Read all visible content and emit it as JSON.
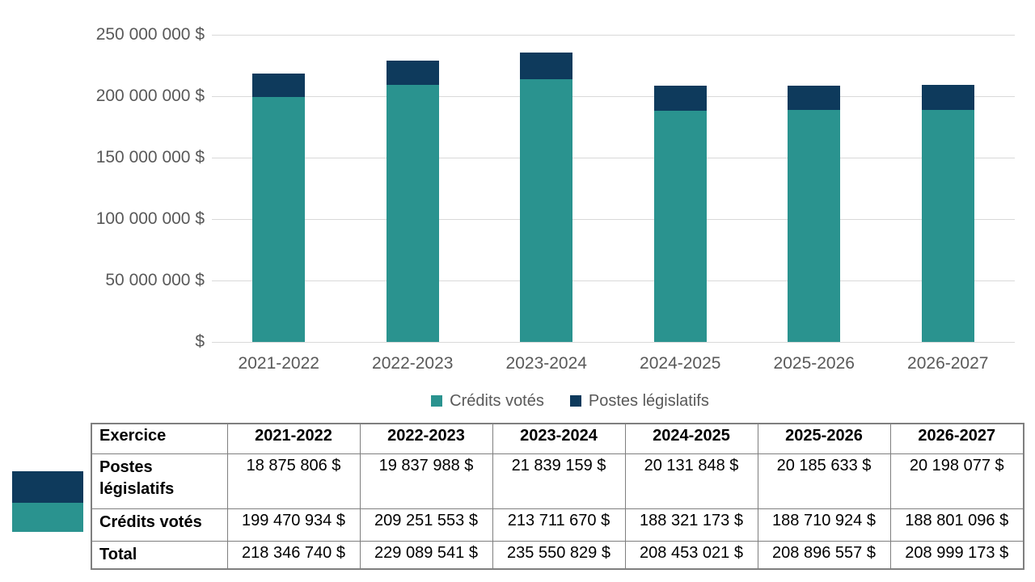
{
  "colors": {
    "teal": "#2A938F",
    "navy": "#0E3A5C",
    "gridline": "#D9D9D9",
    "axis_text": "#595959",
    "table_border": "#7F7F7F"
  },
  "chart_data": {
    "type": "bar",
    "stacked": true,
    "title": "",
    "xlabel": "",
    "ylabel": "",
    "categories": [
      "2021-2022",
      "2022-2023",
      "2023-2024",
      "2024-2025",
      "2025-2026",
      "2026-2027"
    ],
    "series": [
      {
        "name": "Crédits votés",
        "color": "#2A938F",
        "values": [
          199470934,
          209251553,
          213711670,
          188321173,
          188710924,
          188801096
        ]
      },
      {
        "name": "Postes législatifs",
        "color": "#0E3A5C",
        "values": [
          18875806,
          19837988,
          21839159,
          20131848,
          20185633,
          20198077
        ]
      }
    ],
    "totals": [
      218346740,
      229089541,
      235550829,
      208453021,
      208896557,
      208999173
    ],
    "ylim": [
      0,
      250000000
    ],
    "y_tick_step": 50000000,
    "y_tick_labels_top_down": [
      "250 000 000 $",
      "200 000 000 $",
      "150 000 000 $",
      "100 000 000 $",
      "50 000 000 $",
      "$"
    ],
    "grid": true,
    "legend_position": "bottom",
    "legend": [
      "Crédits votés",
      "Postes législatifs"
    ]
  },
  "table": {
    "header": [
      "Exercice",
      "2021-2022",
      "2022-2023",
      "2023-2024",
      "2024-2025",
      "2025-2026",
      "2026-2027"
    ],
    "rows": [
      {
        "label": "Postes législatifs",
        "swatch_color": "#0E3A5C",
        "values": [
          "18 875 806 $",
          "19 837 988 $",
          "21 839 159 $",
          "20 131 848 $",
          "20 185 633 $",
          "20 198 077 $"
        ]
      },
      {
        "label": "Crédits votés",
        "swatch_color": "#2A938F",
        "values": [
          "199 470 934 $",
          "209 251 553 $",
          "213 711 670 $",
          "188 321 173 $",
          "188 710 924 $",
          "188 801 096 $"
        ]
      },
      {
        "label": "Total",
        "swatch_color": null,
        "values": [
          "218 346 740 $",
          "229 089 541 $",
          "235 550 829 $",
          "208 453 021 $",
          "208 896 557 $",
          "208 999 173 $"
        ]
      }
    ]
  }
}
